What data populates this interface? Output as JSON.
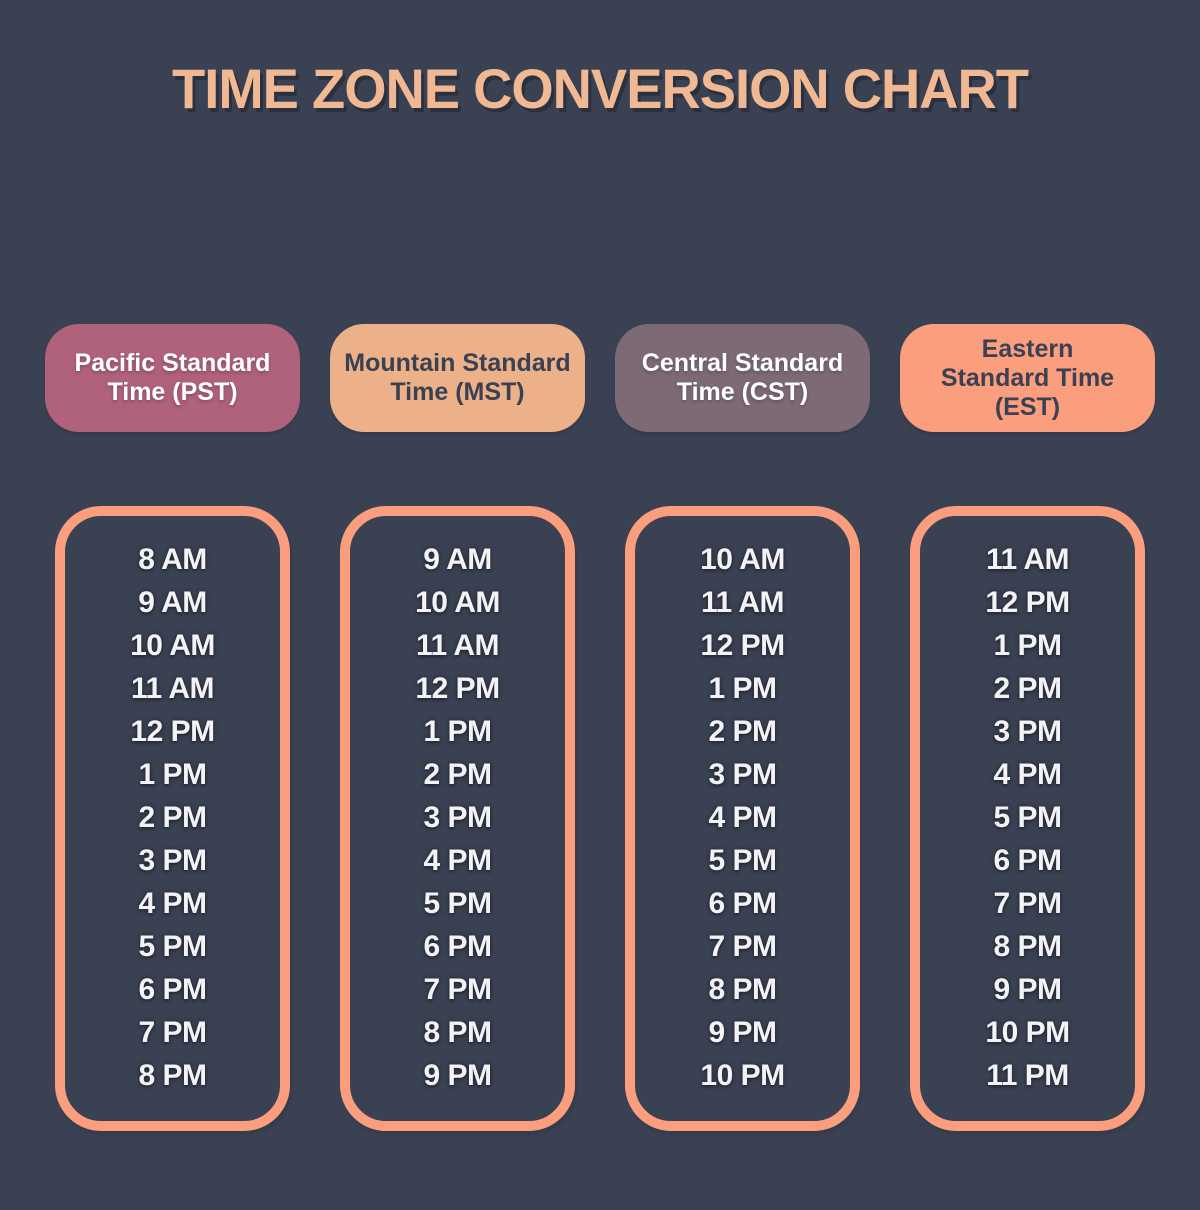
{
  "title": "TIME ZONE CONVERSION CHART",
  "theme": {
    "background": "#3a4152",
    "title_color": "#f0b893",
    "box_border_color": "#fb9e7d",
    "time_text_color": "#f3f3f5"
  },
  "columns": [
    {
      "id": "pst",
      "header_label": "Pacific Standard Time (PST)",
      "header_lines": [
        "Pacific Standard",
        "Time (PST)"
      ],
      "header_bg": "#b0617b",
      "header_text_color": "#ffffff",
      "times": [
        "8 AM",
        "9 AM",
        "10 AM",
        "11 AM",
        "12 PM",
        "1 PM",
        "2 PM",
        "3 PM",
        "4 PM",
        "5 PM",
        "6 PM",
        "7 PM",
        "8 PM"
      ]
    },
    {
      "id": "mst",
      "header_label": "Mountain Standard Time (MST)",
      "header_lines": [
        "Mountain Standard",
        "Time (MST)"
      ],
      "header_bg": "#ecb189",
      "header_text_color": "#3a4152",
      "times": [
        "9 AM",
        "10 AM",
        "11 AM",
        "12 PM",
        "1 PM",
        "2 PM",
        "3 PM",
        "4 PM",
        "5 PM",
        "6 PM",
        "7 PM",
        "8 PM",
        "9 PM"
      ]
    },
    {
      "id": "cst",
      "header_label": "Central Standard Time (CST)",
      "header_lines": [
        "Central Standard",
        "Time (CST)"
      ],
      "header_bg": "#7d6a75",
      "header_text_color": "#ffffff",
      "times": [
        "10 AM",
        "11 AM",
        "12 PM",
        "1 PM",
        "2 PM",
        "3 PM",
        "4 PM",
        "5 PM",
        "6 PM",
        "7 PM",
        "8 PM",
        "9 PM",
        "10 PM"
      ]
    },
    {
      "id": "est",
      "header_label": "Eastern Standard Time (EST)",
      "header_lines": [
        "Eastern",
        "Standard Time",
        "(EST)"
      ],
      "header_bg": "#fb9e7d",
      "header_text_color": "#3a4152",
      "times": [
        "11 AM",
        "12 PM",
        "1 PM",
        "2 PM",
        "3 PM",
        "4 PM",
        "5 PM",
        "6 PM",
        "7 PM",
        "8 PM",
        "9 PM",
        "10 PM",
        "11 PM"
      ]
    }
  ],
  "chart_data": {
    "type": "table",
    "title": "TIME ZONE CONVERSION CHART",
    "columns": [
      "Pacific Standard Time (PST)",
      "Mountain Standard Time (MST)",
      "Central Standard Time (CST)",
      "Eastern Standard Time (EST)"
    ],
    "rows": [
      [
        "8 AM",
        "9 AM",
        "10 AM",
        "11 AM"
      ],
      [
        "9 AM",
        "10 AM",
        "11 AM",
        "12 PM"
      ],
      [
        "10 AM",
        "11 AM",
        "12 PM",
        "1 PM"
      ],
      [
        "11 AM",
        "12 PM",
        "1 PM",
        "2 PM"
      ],
      [
        "12 PM",
        "1 PM",
        "2 PM",
        "3 PM"
      ],
      [
        "1 PM",
        "2 PM",
        "3 PM",
        "4 PM"
      ],
      [
        "2 PM",
        "3 PM",
        "4 PM",
        "5 PM"
      ],
      [
        "3 PM",
        "4 PM",
        "5 PM",
        "6 PM"
      ],
      [
        "4 PM",
        "5 PM",
        "6 PM",
        "7 PM"
      ],
      [
        "5 PM",
        "6 PM",
        "7 PM",
        "8 PM"
      ],
      [
        "6 PM",
        "7 PM",
        "8 PM",
        "9 PM"
      ],
      [
        "7 PM",
        "8 PM",
        "9 PM",
        "10 PM"
      ],
      [
        "8 PM",
        "9 PM",
        "10 PM",
        "11 PM"
      ]
    ],
    "grid": false,
    "legend_position": "none"
  }
}
